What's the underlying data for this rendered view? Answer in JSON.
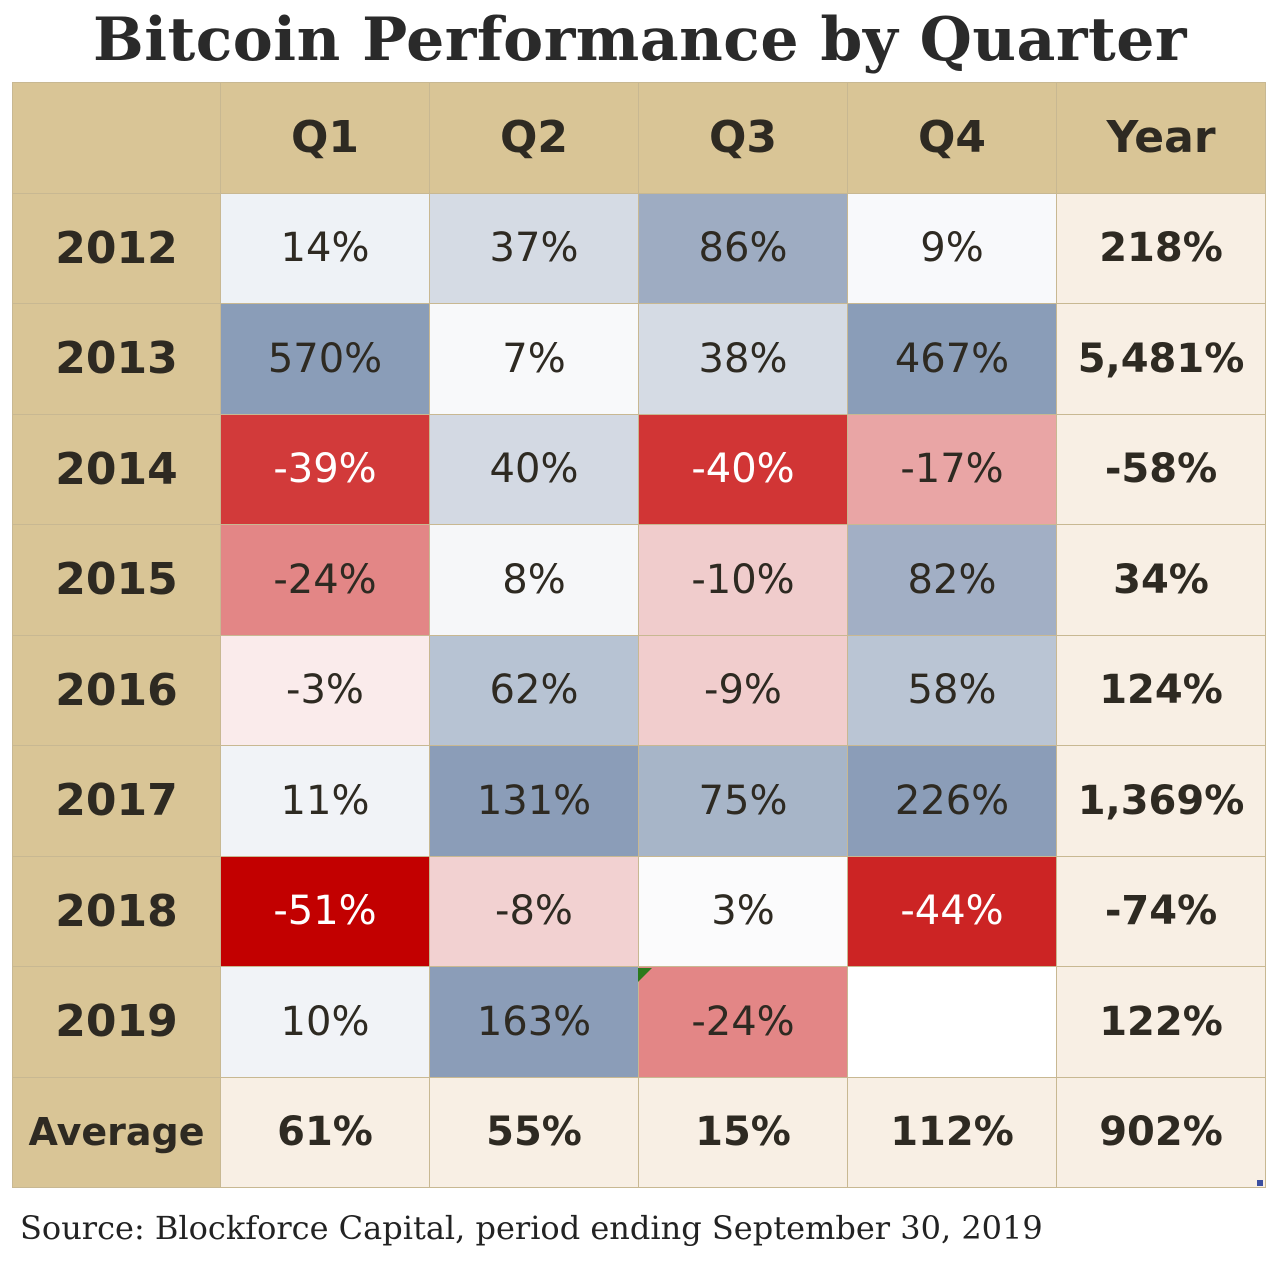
{
  "title": "Bitcoin Performance by Quarter",
  "headers": [
    "",
    "Q1",
    "Q2",
    "Q3",
    "Q4",
    "Year"
  ],
  "rows": [
    {
      "year": "2012",
      "q": [
        "14%",
        "37%",
        "86%",
        "9%"
      ],
      "total": "218%",
      "colors": [
        "#eef2f6",
        "#d5dbe4",
        "#9eacc2",
        "#f8f9fb"
      ],
      "text_colors": [
        "#2e2a22",
        "#2e2a22",
        "#2e2a22",
        "#2e2a22"
      ]
    },
    {
      "year": "2013",
      "q": [
        "570%",
        "7%",
        "38%",
        "467%"
      ],
      "total": "5,481%",
      "colors": [
        "#8a9db8",
        "#f8f9fa",
        "#d5dbe4",
        "#8a9db8"
      ],
      "text_colors": [
        "#2e2a22",
        "#2e2a22",
        "#2e2a22",
        "#2e2a22"
      ]
    },
    {
      "year": "2014",
      "q": [
        "-39%",
        "40%",
        "-40%",
        "-17%"
      ],
      "total": "-58%",
      "colors": [
        "#d23a3a",
        "#d3d9e3",
        "#d13535",
        "#e9a5a5"
      ],
      "text_colors": [
        "#ffffff",
        "#2e2a22",
        "#ffffff",
        "#2e2a22"
      ]
    },
    {
      "year": "2015",
      "q": [
        "-24%",
        "8%",
        "-10%",
        "82%"
      ],
      "total": "34%",
      "colors": [
        "#e38686",
        "#f6f7f9",
        "#f0cccc",
        "#a2afc5"
      ],
      "text_colors": [
        "#2e2a22",
        "#2e2a22",
        "#2e2a22",
        "#2e2a22"
      ]
    },
    {
      "year": "2016",
      "q": [
        "-3%",
        "62%",
        "-9%",
        "58%"
      ],
      "total": "124%",
      "colors": [
        "#faebeb",
        "#b7c3d3",
        "#f1cdcd",
        "#bac5d4"
      ],
      "text_colors": [
        "#2e2a22",
        "#2e2a22",
        "#2e2a22",
        "#2e2a22"
      ]
    },
    {
      "year": "2017",
      "q": [
        "11%",
        "131%",
        "75%",
        "226%"
      ],
      "total": "1,369%",
      "colors": [
        "#f1f3f7",
        "#8b9db8",
        "#a7b5c8",
        "#8b9db8"
      ],
      "text_colors": [
        "#2e2a22",
        "#2e2a22",
        "#2e2a22",
        "#2e2a22"
      ]
    },
    {
      "year": "2018",
      "q": [
        "-51%",
        "-8%",
        "3%",
        "-44%"
      ],
      "total": "-74%",
      "colors": [
        "#c20000",
        "#f2d1d1",
        "#fbfbfc",
        "#cc2424"
      ],
      "text_colors": [
        "#ffffff",
        "#2e2a22",
        "#2e2a22",
        "#ffffff"
      ]
    },
    {
      "year": "2019",
      "q": [
        "10%",
        "163%",
        "-24%",
        ""
      ],
      "total": "122%",
      "colors": [
        "#f1f3f7",
        "#8b9db8",
        "#e38686",
        "#ffffff"
      ],
      "text_colors": [
        "#2e2a22",
        "#2e2a22",
        "#2e2a22",
        "#2e2a22"
      ]
    }
  ],
  "average": {
    "label": "Average",
    "values": [
      "61%",
      "55%",
      "15%",
      "112%",
      "902%"
    ]
  },
  "source": "Source: Blockforce Capital, period ending September 30, 2019"
}
